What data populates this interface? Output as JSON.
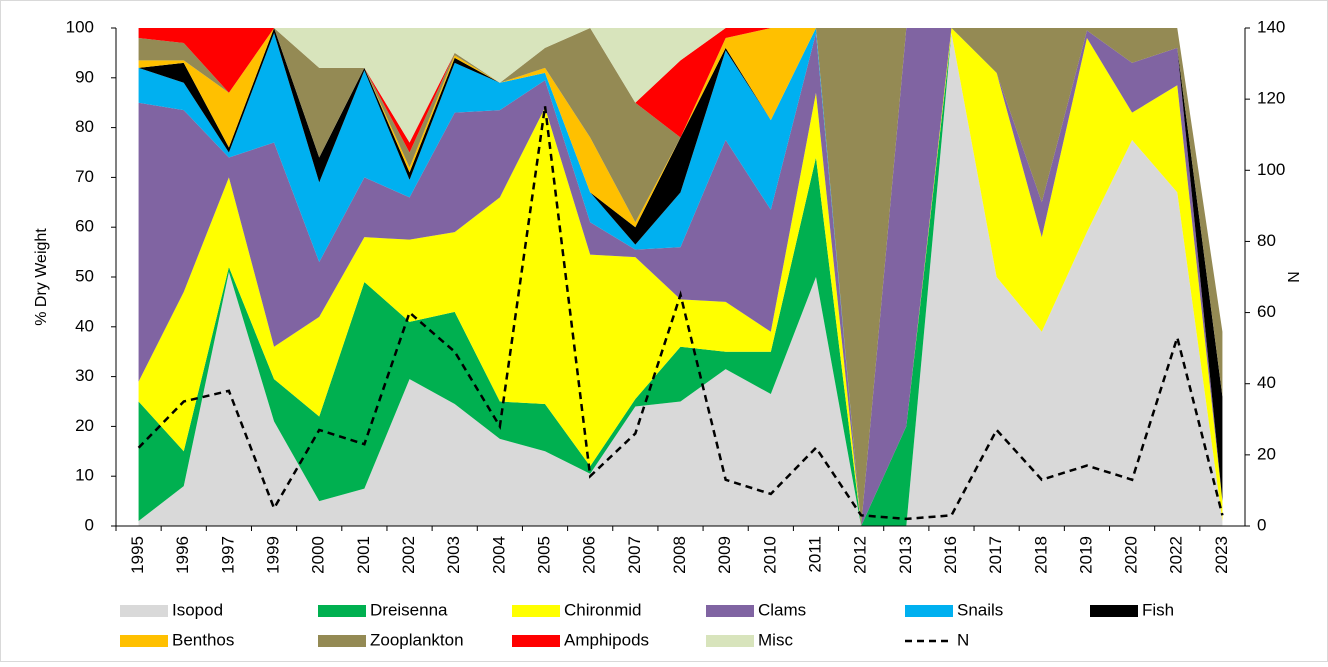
{
  "chart_data": {
    "type": "area",
    "ylabel": "% Dry Weight",
    "y2label": "N",
    "categories": [
      "1995",
      "1996",
      "1997",
      "1999",
      "2000",
      "2001",
      "2002",
      "2003",
      "2004",
      "2005",
      "2006",
      "2007",
      "2008",
      "2009",
      "2010",
      "2011",
      "2012",
      "2013",
      "2016",
      "2017",
      "2018",
      "2019",
      "2020",
      "2022",
      "2023"
    ],
    "ylim": [
      0,
      100
    ],
    "yticks": [
      0,
      10,
      20,
      30,
      40,
      50,
      60,
      70,
      80,
      90,
      100
    ],
    "y2lim": [
      0,
      140
    ],
    "y2ticks": [
      0,
      20,
      40,
      60,
      80,
      100,
      120,
      140
    ],
    "series": [
      {
        "name": "Isopod",
        "color": "#d9d9d9",
        "values": [
          1,
          8,
          51,
          21,
          5,
          7.5,
          29.5,
          24.5,
          17.5,
          15,
          10.5,
          24,
          25,
          31.5,
          26.5,
          50,
          0,
          0,
          99,
          50,
          39,
          59,
          77.5,
          67,
          1
        ]
      },
      {
        "name": "Dreisenna",
        "color": "#00b050",
        "values": [
          24,
          7,
          1,
          8.5,
          17,
          41.5,
          11.5,
          18.5,
          7.5,
          9.5,
          1.5,
          1.5,
          11,
          3.5,
          8.5,
          24,
          0,
          20,
          0,
          0,
          0,
          0,
          0,
          0,
          0
        ]
      },
      {
        "name": "Chironmid",
        "color": "#ffff00",
        "values": [
          4,
          32,
          18,
          6.5,
          20,
          9,
          16.5,
          16,
          41,
          59.5,
          42.5,
          28.5,
          9.5,
          10,
          4,
          13,
          0,
          0,
          1,
          41,
          19,
          39,
          5.5,
          21.5,
          4
        ]
      },
      {
        "name": "Clams",
        "color": "#8064a2",
        "values": [
          56,
          36.5,
          4,
          41,
          11,
          12,
          8.5,
          24,
          17.5,
          5.5,
          6.5,
          1.5,
          10.5,
          32.5,
          24.5,
          12,
          0,
          80,
          0,
          0,
          7,
          1.5,
          10,
          7.5,
          0
        ]
      },
      {
        "name": "Snails",
        "color": "#00b0f0",
        "values": [
          7,
          5.5,
          1,
          22,
          16,
          21.5,
          3.5,
          10,
          5.5,
          1.5,
          6,
          1,
          11,
          18,
          18,
          1,
          0,
          0,
          0,
          0,
          0,
          0,
          0,
          0,
          0
        ]
      },
      {
        "name": "Fish",
        "color": "#000000",
        "values": [
          0,
          4,
          1,
          1,
          5,
          0.5,
          1.5,
          1,
          0,
          0,
          0,
          3.5,
          11,
          0.5,
          0,
          0,
          0,
          0,
          0,
          0,
          0,
          0,
          0,
          0,
          21
        ]
      },
      {
        "name": "Benthos",
        "color": "#ffc000",
        "values": [
          1.5,
          0.5,
          11,
          0,
          0,
          0,
          1,
          0.5,
          0,
          1,
          11,
          1,
          0,
          2,
          18.5,
          0,
          0,
          0,
          0,
          0,
          0,
          0,
          0,
          0,
          0
        ]
      },
      {
        "name": "Zooplankton",
        "color": "#948a54",
        "values": [
          4.5,
          3.5,
          0,
          0,
          18,
          0,
          3,
          0.5,
          0,
          4,
          22,
          24,
          0,
          0,
          0,
          0,
          100,
          0,
          0,
          9,
          35,
          0.5,
          7,
          4,
          13
        ]
      },
      {
        "name": "Amphipods",
        "color": "#ff0000",
        "values": [
          2,
          3,
          13,
          0,
          0,
          0,
          2,
          0,
          0,
          0,
          0,
          0,
          15.5,
          2,
          0,
          0,
          0,
          0,
          0,
          0,
          0,
          0,
          0,
          0,
          0
        ]
      },
      {
        "name": "Misc",
        "color": "#d8e4bc",
        "values": [
          0,
          0,
          0,
          0,
          8,
          8,
          23,
          5,
          11,
          4,
          0,
          15,
          6.5,
          0,
          0,
          0,
          0,
          0,
          0,
          0,
          0,
          0,
          0,
          0,
          0
        ]
      },
      {
        "name": "N",
        "color": "#000000",
        "axis": "y2",
        "dashed": true,
        "values": [
          22,
          35,
          38,
          5,
          27,
          23,
          60,
          49,
          28,
          118,
          14,
          26,
          65,
          13,
          9,
          22,
          3,
          2,
          3,
          27,
          13,
          17,
          13,
          53,
          3
        ]
      }
    ]
  }
}
